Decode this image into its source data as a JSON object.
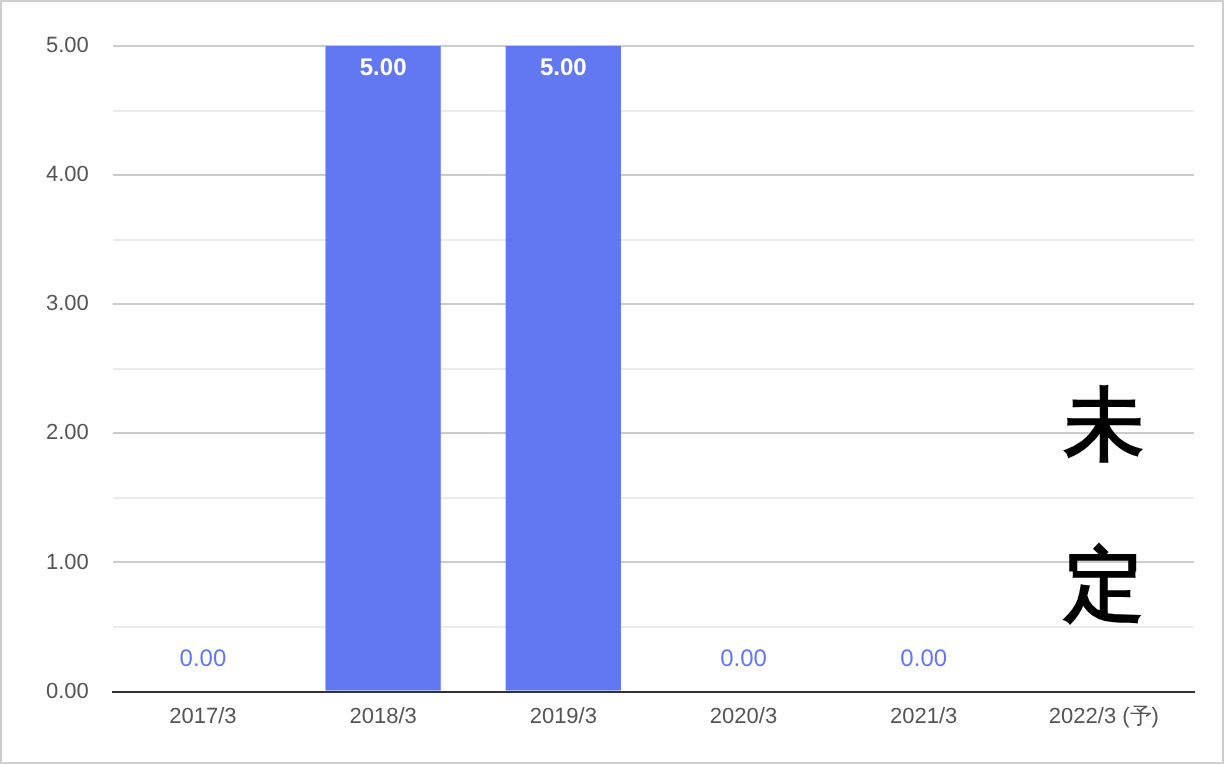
{
  "chart_data": {
    "type": "bar",
    "categories": [
      "2017/3",
      "2018/3",
      "2019/3",
      "2020/3",
      "2021/3",
      "2022/3 (予)"
    ],
    "values": [
      0,
      5,
      5,
      0,
      0,
      null
    ],
    "color": "#6178f2",
    "value_labels": [
      "0.00",
      "5.00",
      "5.00",
      "0.00",
      "0.00",
      null
    ],
    "ylim": [
      0,
      5
    ],
    "yticks": [
      {
        "value": 0,
        "label": "0.00"
      },
      {
        "value": 0.5,
        "label": null
      },
      {
        "value": 1,
        "label": "1.00"
      },
      {
        "value": 1.5,
        "label": null
      },
      {
        "value": 2,
        "label": "2.00"
      },
      {
        "value": 2.5,
        "label": null
      },
      {
        "value": 3,
        "label": "3.00"
      },
      {
        "value": 3.5,
        "label": null
      },
      {
        "value": 4,
        "label": "4.00"
      },
      {
        "value": 4.5,
        "label": null
      },
      {
        "value": 5,
        "label": "5.00"
      }
    ],
    "grid": "y",
    "annotations": [
      "未定"
    ]
  }
}
